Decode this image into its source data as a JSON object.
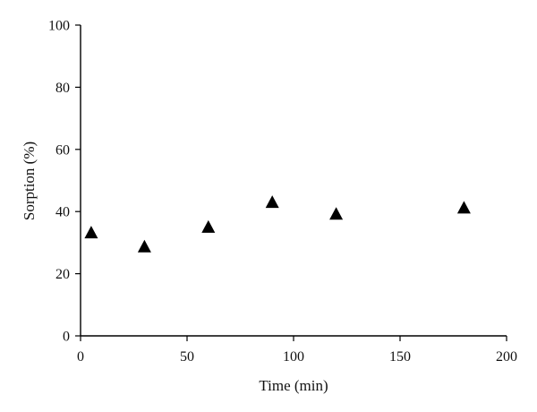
{
  "chart_data": {
    "type": "scatter",
    "title": "",
    "xlabel": "Time (min)",
    "ylabel": "Sorption (%)",
    "xlim": [
      0,
      200
    ],
    "ylim": [
      0,
      100
    ],
    "xticks": [
      "0",
      "50",
      "100",
      "150",
      "200"
    ],
    "yticks": [
      "0",
      "20",
      "40",
      "60",
      "80",
      "100"
    ],
    "grid": false,
    "legend": "none",
    "marker": "triangle",
    "marker_color": "#000000",
    "series": [
      {
        "x": [
          5,
          30,
          60,
          90,
          120,
          180
        ],
        "y": [
          33,
          28.5,
          34.8,
          42.8,
          39,
          41
        ]
      }
    ]
  }
}
